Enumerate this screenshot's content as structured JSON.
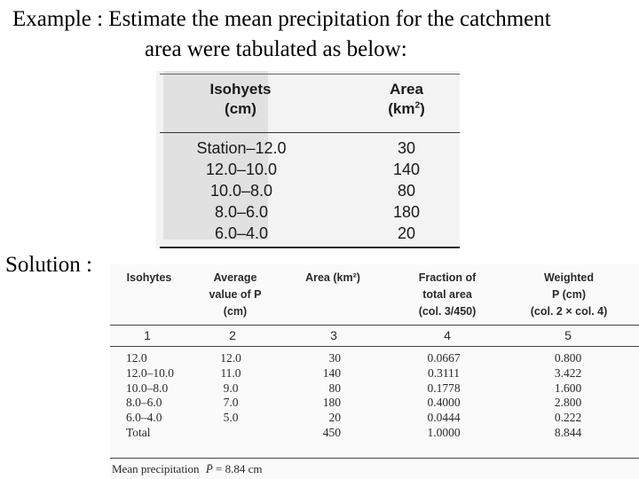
{
  "heading": {
    "line1": "Example : Estimate the mean precipitation for the catchment",
    "line2": "area were tabulated as below:"
  },
  "given_table": {
    "header_col1_line1": "Isohyets",
    "header_col1_line2": "(cm)",
    "header_col2_line1": "Area",
    "header_col2_unit": "(km",
    "header_col2_sup": "2",
    "header_col2_close": ")",
    "rows": [
      {
        "isohyets": "Station–12.0",
        "area": "30"
      },
      {
        "isohyets": "12.0–10.0",
        "area": "140"
      },
      {
        "isohyets": "10.0–8.0",
        "area": "80"
      },
      {
        "isohyets": "8.0–6.0",
        "area": "180"
      },
      {
        "isohyets": "6.0–4.0",
        "area": "20"
      }
    ]
  },
  "solution_label": "Solution :",
  "solution_table": {
    "headers": [
      {
        "l1": "Isohytes",
        "l2": "",
        "l3": ""
      },
      {
        "l1": "Average",
        "l2": "value of P",
        "l3": "(cm)"
      },
      {
        "l1": "Area (km²)",
        "l2": "",
        "l3": ""
      },
      {
        "l1": "Fraction of",
        "l2": "total area",
        "l3": "(col. 3/450)"
      },
      {
        "l1": "Weighted",
        "l2": "P (cm)",
        "l3": "(col. 2 × col. 4)"
      }
    ],
    "column_numbers": [
      "1",
      "2",
      "3",
      "4",
      "5"
    ],
    "rows": [
      [
        "12.0",
        "12.0",
        "30",
        "0.0667",
        "0.800"
      ],
      [
        "12.0–10.0",
        "11.0",
        "140",
        "0.3111",
        "3.422"
      ],
      [
        "10.0–8.0",
        "9.0",
        "80",
        "0.1778",
        "1.600"
      ],
      [
        "8.0–6.0",
        "7.0",
        "180",
        "0.4000",
        "2.800"
      ],
      [
        "6.0–4.0",
        "5.0",
        "20",
        "0.0444",
        "0.222"
      ],
      [
        "Total",
        "",
        "450",
        "1.0000",
        "8.844"
      ]
    ],
    "footer_label": "Mean precipitation",
    "footer_symbol": "P̄",
    "footer_value": "= 8.84 cm"
  }
}
